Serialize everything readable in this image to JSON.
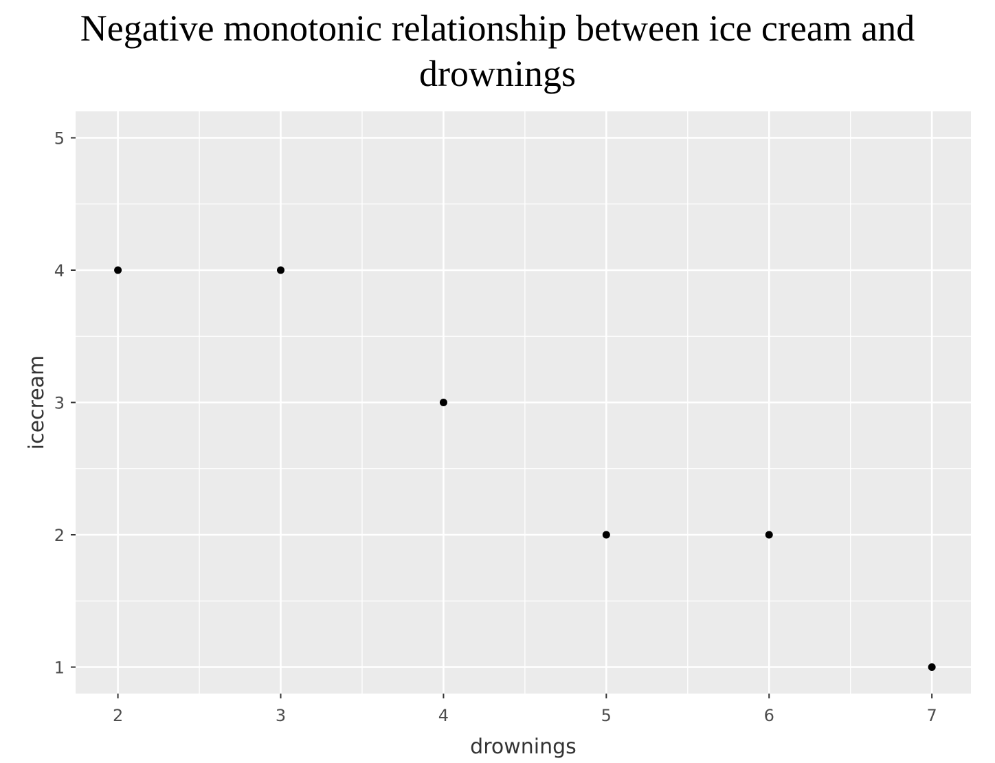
{
  "chart_data": {
    "type": "scatter",
    "title": "Negative monotonic relationship between ice cream and drownings",
    "xlabel": "drownings",
    "ylabel": "icecream",
    "x": [
      2,
      3,
      4,
      5,
      6,
      7
    ],
    "y": [
      4,
      4,
      3,
      2,
      2,
      1
    ],
    "xticks": [
      "2",
      "3",
      "4",
      "5",
      "6",
      "7"
    ],
    "yticks": [
      "1",
      "2",
      "3",
      "4",
      "5"
    ],
    "xlim": [
      1.74,
      7.24
    ],
    "ylim": [
      0.8,
      5.2
    ],
    "grid": true,
    "colors": {
      "panel_background": "#ebebeb",
      "grid_line": "#ffffff",
      "point": "#000000",
      "tick_label": "#4d4d4d",
      "axis_title": "#333333"
    }
  }
}
